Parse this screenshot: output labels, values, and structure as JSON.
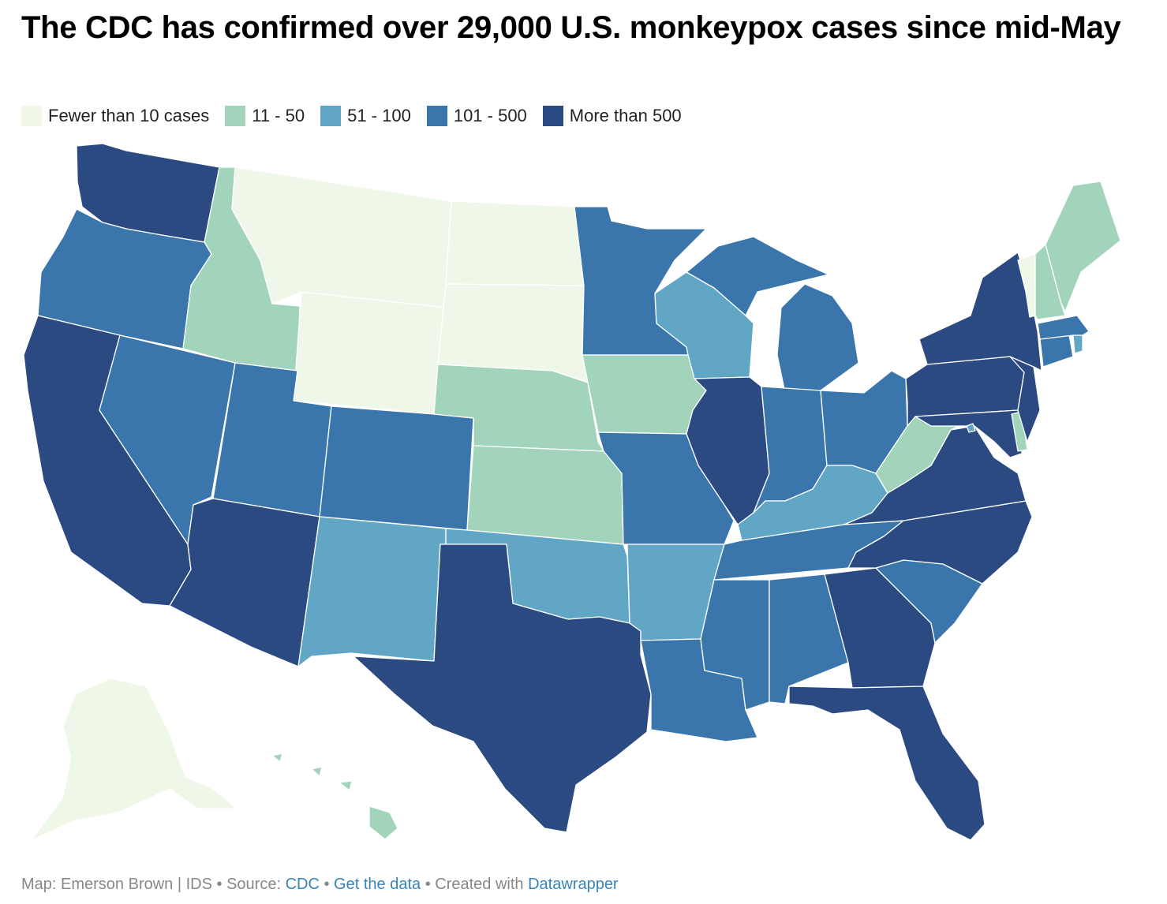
{
  "title": "The CDC has confirmed over 29,000 U.S. monkeypox cases since mid-May",
  "colors": {
    "fewer_than_10": "#eff8e8",
    "11_50": "#a2d4bc",
    "51_100": "#62a6c6",
    "101_500": "#3a75ac",
    "more_than_500": "#2c4a82"
  },
  "legend": [
    {
      "label": "Fewer than 10 cases",
      "color": "#eff8e8"
    },
    {
      "label": "11 - 50",
      "color": "#a2d4bc"
    },
    {
      "label": "51 - 100",
      "color": "#62a6c6"
    },
    {
      "label": "101 - 500",
      "color": "#3a75ac"
    },
    {
      "label": "More than 500",
      "color": "#2c4a82"
    }
  ],
  "states": {
    "WA": "More than 500",
    "OR": "101 - 500",
    "CA": "More than 500",
    "NV": "101 - 500",
    "ID": "11 - 50",
    "MT": "Fewer than 10 cases",
    "WY": "Fewer than 10 cases",
    "UT": "101 - 500",
    "AZ": "More than 500",
    "CO": "101 - 500",
    "NM": "51 - 100",
    "ND": "Fewer than 10 cases",
    "SD": "Fewer than 10 cases",
    "NE": "11 - 50",
    "KS": "11 - 50",
    "OK": "51 - 100",
    "TX": "More than 500",
    "MN": "101 - 500",
    "IA": "11 - 50",
    "MO": "101 - 500",
    "AR": "51 - 100",
    "LA": "101 - 500",
    "WI": "51 - 100",
    "IL": "More than 500",
    "MI": "101 - 500",
    "IN": "101 - 500",
    "OH": "101 - 500",
    "KY": "51 - 100",
    "TN": "101 - 500",
    "MS": "101 - 500",
    "AL": "101 - 500",
    "GA": "More than 500",
    "FL": "More than 500",
    "SC": "101 - 500",
    "NC": "More than 500",
    "VA": "More than 500",
    "WV": "11 - 50",
    "MD": "More than 500",
    "DE": "11 - 50",
    "DC": "51 - 100",
    "PA": "More than 500",
    "NJ": "More than 500",
    "NY": "More than 500",
    "CT": "101 - 500",
    "RI": "51 - 100",
    "MA": "101 - 500",
    "VT": "Fewer than 10 cases",
    "NH": "11 - 50",
    "ME": "11 - 50",
    "AK": "Fewer than 10 cases",
    "HI": "11 - 50"
  },
  "footer": {
    "map_credit": "Map: Emerson Brown | IDS",
    "source_prefix": "• Source:",
    "source_link": "CDC",
    "sep1": "•",
    "data_link": "Get the data",
    "created_prefix": "• Created with",
    "created_link": "Datawrapper"
  }
}
